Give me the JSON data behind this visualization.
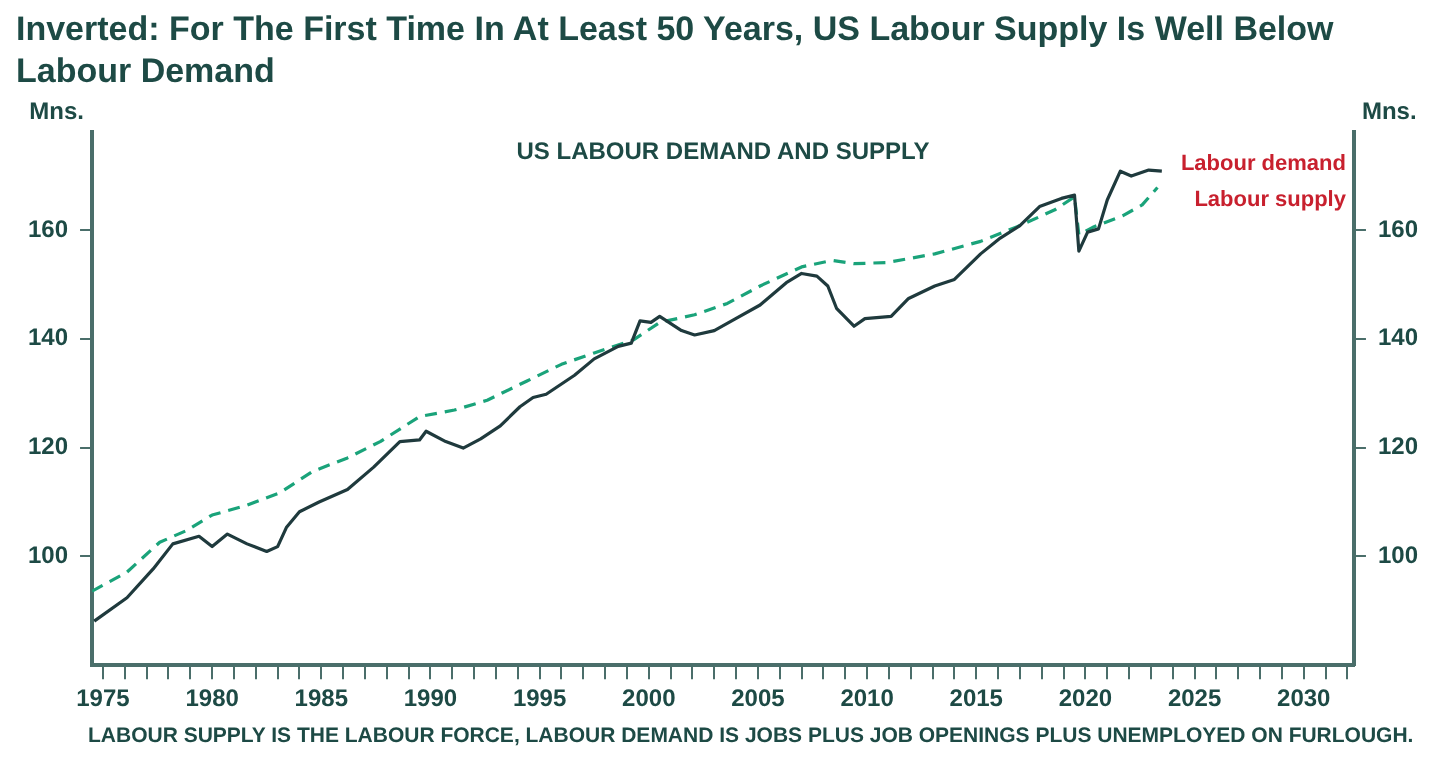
{
  "chart_data": {
    "type": "line",
    "title": "Inverted: For The First Time In At Least 50 Years, US Labour Supply Is Well Below Labour Demand",
    "subtitle": "US LABOUR DEMAND AND SUPPLY",
    "ylabel": "Mns.",
    "y2label": "Mns.",
    "annotations": [
      "LABOUR SUPPLY IS THE LABOUR FORCE, LABOUR DEMAND IS JOBS PLUS JOB OPENINGS PLUS UNEMPLOYED ON FURLOUGH."
    ],
    "xlim": [
      1974.5,
      2032.3
    ],
    "xticks": [
      1975,
      {
        "value": 1976,
        "label": null
      },
      {
        "value": 1977,
        "label": null
      },
      {
        "value": 1978,
        "label": null
      },
      {
        "value": 1979,
        "label": null
      },
      1980,
      {
        "value": 1981,
        "label": null
      },
      {
        "value": 1982,
        "label": null
      },
      {
        "value": 1983,
        "label": null
      },
      {
        "value": 1984,
        "label": null
      },
      1985,
      {
        "value": 1986,
        "label": null
      },
      {
        "value": 1987,
        "label": null
      },
      {
        "value": 1988,
        "label": null
      },
      {
        "value": 1989,
        "label": null
      },
      1990,
      {
        "value": 1991,
        "label": null
      },
      {
        "value": 1992,
        "label": null
      },
      {
        "value": 1993,
        "label": null
      },
      {
        "value": 1994,
        "label": null
      },
      1995,
      {
        "value": 1996,
        "label": null
      },
      {
        "value": 1997,
        "label": null
      },
      {
        "value": 1998,
        "label": null
      },
      {
        "value": 1999,
        "label": null
      },
      2000,
      {
        "value": 2001,
        "label": null
      },
      {
        "value": 2002,
        "label": null
      },
      {
        "value": 2003,
        "label": null
      },
      {
        "value": 2004,
        "label": null
      },
      2005,
      {
        "value": 2006,
        "label": null
      },
      {
        "value": 2007,
        "label": null
      },
      {
        "value": 2008,
        "label": null
      },
      {
        "value": 2009,
        "label": null
      },
      2010,
      {
        "value": 2011,
        "label": null
      },
      {
        "value": 2012,
        "label": null
      },
      {
        "value": 2013,
        "label": null
      },
      {
        "value": 2014,
        "label": null
      },
      2015,
      {
        "value": 2016,
        "label": null
      },
      {
        "value": 2017,
        "label": null
      },
      {
        "value": 2018,
        "label": null
      },
      {
        "value": 2019,
        "label": null
      },
      2020,
      {
        "value": 2021,
        "label": null
      },
      {
        "value": 2022,
        "label": null
      },
      {
        "value": 2023,
        "label": null
      },
      {
        "value": 2024,
        "label": null
      },
      2025,
      {
        "value": 2026,
        "label": null
      },
      {
        "value": 2027,
        "label": null
      },
      {
        "value": 2028,
        "label": null
      },
      {
        "value": 2029,
        "label": null
      },
      2030,
      {
        "value": 2031,
        "label": null
      },
      {
        "value": 2032,
        "label": null
      }
    ],
    "ylim": [
      80,
      178
    ],
    "yticks": [
      100,
      120,
      140,
      160
    ],
    "y2lim": [
      80,
      178
    ],
    "y2ticks": [
      100,
      120,
      140,
      160
    ],
    "grid": false,
    "legend": "top right",
    "marker": "none",
    "series": [
      {
        "name": "Labour demand",
        "color": "#1f3a3d",
        "line_style": "solid",
        "x": [
          1974.6,
          1976.1,
          1977.3,
          1978.2,
          1979.4,
          1980.0,
          1980.7,
          1981.6,
          1982.5,
          1983.0,
          1983.4,
          1984.0,
          1984.9,
          1986.2,
          1987.4,
          1988.6,
          1989.5,
          1989.8,
          1990.7,
          1991.5,
          1992.3,
          1993.2,
          1994.1,
          1994.7,
          1995.3,
          1996.6,
          1997.5,
          1998.6,
          1999.2,
          1999.6,
          2000.1,
          2000.5,
          2001.5,
          2002.1,
          2003.0,
          2003.9,
          2005.1,
          2006.3,
          2007.0,
          2007.7,
          2008.2,
          2008.6,
          2009.4,
          2009.9,
          2011.1,
          2011.9,
          2013.1,
          2014.0,
          2015.2,
          2016.1,
          2017.0,
          2017.9,
          2018.9,
          2019.5,
          2019.6,
          2019.7,
          2020.1,
          2020.6,
          2021.0,
          2021.6,
          2022.1,
          2022.9,
          2023.5
        ],
        "values": [
          88.1,
          92.4,
          97.7,
          102.3,
          103.7,
          101.8,
          104.1,
          102.3,
          100.9,
          101.8,
          105.3,
          108.2,
          110.0,
          112.3,
          116.4,
          121.1,
          121.4,
          123.0,
          121.1,
          119.9,
          121.6,
          124.0,
          127.5,
          129.2,
          129.8,
          133.3,
          136.3,
          138.6,
          139.2,
          143.3,
          143.0,
          144.1,
          141.5,
          140.7,
          141.5,
          143.5,
          146.2,
          150.3,
          152.0,
          151.5,
          149.7,
          145.6,
          142.3,
          143.7,
          144.1,
          147.4,
          149.7,
          150.9,
          155.6,
          158.5,
          160.8,
          164.3,
          165.8,
          166.4,
          161.4,
          156.1,
          159.6,
          160.2,
          165.5,
          170.8,
          169.9,
          171.0,
          170.8
        ]
      },
      {
        "name": "Labour supply",
        "color": "#1aa37a",
        "line_style": "dashed",
        "x": [
          1974.5,
          1976.1,
          1977.6,
          1978.8,
          1980.0,
          1981.6,
          1983.1,
          1984.6,
          1986.2,
          1987.7,
          1989.5,
          1991.1,
          1992.6,
          1994.4,
          1996.0,
          1997.5,
          1999.3,
          2000.5,
          2002.1,
          2003.6,
          2005.1,
          2007.0,
          2008.4,
          2009.4,
          2010.9,
          2013.1,
          2015.2,
          2017.0,
          2018.6,
          2019.5,
          2019.7,
          2020.4,
          2021.7,
          2022.6,
          2023.3
        ],
        "values": [
          93.6,
          97.1,
          102.6,
          104.7,
          107.6,
          109.4,
          111.7,
          115.6,
          118.1,
          121.1,
          125.7,
          126.9,
          128.7,
          132.2,
          135.3,
          137.4,
          139.8,
          143.0,
          144.4,
          146.5,
          149.7,
          153.2,
          154.4,
          153.8,
          154.0,
          155.6,
          157.9,
          160.8,
          163.7,
          166.1,
          159.1,
          160.6,
          162.6,
          164.6,
          167.8
        ]
      }
    ]
  }
}
